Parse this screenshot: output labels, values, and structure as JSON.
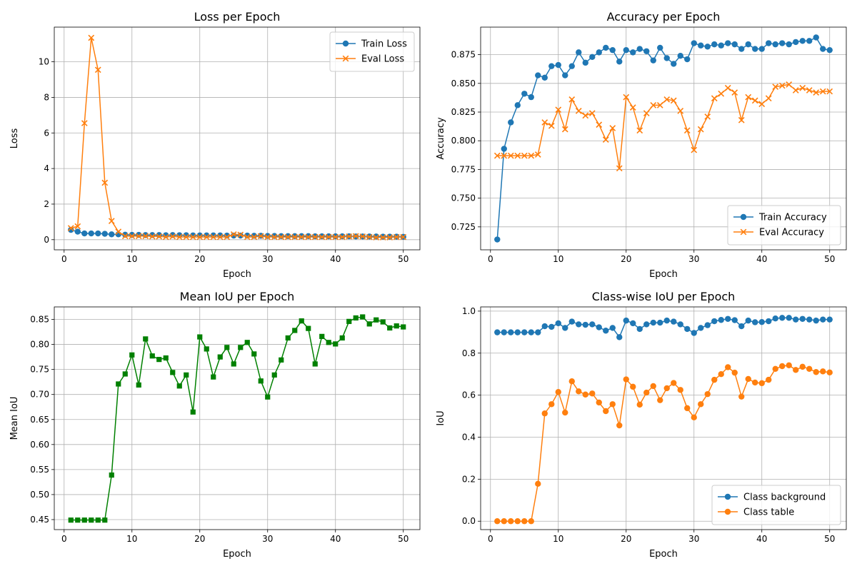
{
  "colors": {
    "tab_blue": "#1f77b4",
    "tab_orange": "#ff7f0e",
    "green": "#008000",
    "grid": "#b0b0b0"
  },
  "chart_data": [
    {
      "id": "loss",
      "type": "line",
      "title": "Loss per Epoch",
      "xlabel": "Epoch",
      "ylabel": "Loss",
      "xlim": [
        -1.45,
        52.45
      ],
      "ylim": [
        -0.57,
        11.95
      ],
      "xticks": [
        0,
        10,
        20,
        30,
        40,
        50
      ],
      "yticks": [
        0,
        2,
        4,
        6,
        8,
        10
      ],
      "tick_decimals": 0,
      "grid": true,
      "legend": "top-right",
      "x": [
        1,
        2,
        3,
        4,
        5,
        6,
        7,
        8,
        9,
        10,
        11,
        12,
        13,
        14,
        15,
        16,
        17,
        18,
        19,
        20,
        21,
        22,
        23,
        24,
        25,
        26,
        27,
        28,
        29,
        30,
        31,
        32,
        33,
        34,
        35,
        36,
        37,
        38,
        39,
        40,
        41,
        42,
        43,
        44,
        45,
        46,
        47,
        48,
        49,
        50
      ],
      "series": [
        {
          "name": "Train Loss",
          "color": "#1f77b4",
          "marker": "circle",
          "values": [
            0.55,
            0.45,
            0.35,
            0.35,
            0.35,
            0.33,
            0.3,
            0.3,
            0.28,
            0.27,
            0.27,
            0.26,
            0.26,
            0.26,
            0.25,
            0.26,
            0.25,
            0.25,
            0.24,
            0.24,
            0.24,
            0.24,
            0.24,
            0.23,
            0.23,
            0.23,
            0.23,
            0.22,
            0.22,
            0.21,
            0.21,
            0.2,
            0.2,
            0.2,
            0.2,
            0.2,
            0.19,
            0.19,
            0.19,
            0.19,
            0.19,
            0.19,
            0.18,
            0.18,
            0.18,
            0.18,
            0.17,
            0.17,
            0.17,
            0.16
          ]
        },
        {
          "name": "Eval Loss",
          "color": "#ff7f0e",
          "marker": "x",
          "values": [
            0.65,
            0.75,
            6.55,
            11.35,
            9.55,
            3.2,
            1.05,
            0.45,
            0.2,
            0.2,
            0.2,
            0.2,
            0.18,
            0.18,
            0.15,
            0.18,
            0.15,
            0.15,
            0.15,
            0.15,
            0.15,
            0.15,
            0.15,
            0.15,
            0.3,
            0.28,
            0.15,
            0.15,
            0.2,
            0.15,
            0.15,
            0.15,
            0.15,
            0.15,
            0.15,
            0.15,
            0.15,
            0.15,
            0.15,
            0.15,
            0.15,
            0.18,
            0.2,
            0.18,
            0.15,
            0.13,
            0.13,
            0.13,
            0.15,
            0.15
          ]
        }
      ]
    },
    {
      "id": "accuracy",
      "type": "line",
      "title": "Accuracy per Epoch",
      "xlabel": "Epoch",
      "ylabel": "Accuracy",
      "xlim": [
        -1.45,
        52.45
      ],
      "ylim": [
        0.705,
        0.899
      ],
      "xticks": [
        0,
        10,
        20,
        30,
        40,
        50
      ],
      "yticks": [
        0.725,
        0.75,
        0.775,
        0.8,
        0.825,
        0.85,
        0.875
      ],
      "tick_decimals": 3,
      "grid": true,
      "legend": "bottom-right",
      "x": [
        1,
        2,
        3,
        4,
        5,
        6,
        7,
        8,
        9,
        10,
        11,
        12,
        13,
        14,
        15,
        16,
        17,
        18,
        19,
        20,
        21,
        22,
        23,
        24,
        25,
        26,
        27,
        28,
        29,
        30,
        31,
        32,
        33,
        34,
        35,
        36,
        37,
        38,
        39,
        40,
        41,
        42,
        43,
        44,
        45,
        46,
        47,
        48,
        49,
        50
      ],
      "series": [
        {
          "name": "Train Accuracy",
          "color": "#1f77b4",
          "marker": "circle",
          "values": [
            0.714,
            0.793,
            0.816,
            0.831,
            0.841,
            0.838,
            0.857,
            0.855,
            0.865,
            0.866,
            0.857,
            0.865,
            0.877,
            0.868,
            0.873,
            0.877,
            0.881,
            0.879,
            0.869,
            0.879,
            0.877,
            0.88,
            0.878,
            0.87,
            0.881,
            0.872,
            0.867,
            0.874,
            0.871,
            0.885,
            0.883,
            0.882,
            0.884,
            0.883,
            0.885,
            0.884,
            0.88,
            0.884,
            0.88,
            0.88,
            0.885,
            0.884,
            0.885,
            0.884,
            0.886,
            0.887,
            0.887,
            0.89,
            0.88,
            0.879
          ]
        },
        {
          "name": "Eval Accuracy",
          "color": "#ff7f0e",
          "marker": "x",
          "values": [
            0.787,
            0.787,
            0.787,
            0.787,
            0.787,
            0.787,
            0.788,
            0.816,
            0.813,
            0.827,
            0.81,
            0.836,
            0.826,
            0.822,
            0.824,
            0.814,
            0.801,
            0.811,
            0.776,
            0.838,
            0.829,
            0.809,
            0.824,
            0.831,
            0.831,
            0.836,
            0.835,
            0.826,
            0.809,
            0.792,
            0.81,
            0.821,
            0.837,
            0.841,
            0.846,
            0.842,
            0.818,
            0.838,
            0.835,
            0.832,
            0.837,
            0.847,
            0.848,
            0.849,
            0.844,
            0.846,
            0.844,
            0.842,
            0.843,
            0.843
          ]
        }
      ]
    },
    {
      "id": "miou",
      "type": "line",
      "title": "Mean IoU per Epoch",
      "xlabel": "Epoch",
      "ylabel": "Mean IoU",
      "xlim": [
        -1.45,
        52.45
      ],
      "ylim": [
        0.43,
        0.875
      ],
      "xticks": [
        0,
        10,
        20,
        30,
        40,
        50
      ],
      "yticks": [
        0.45,
        0.5,
        0.55,
        0.6,
        0.65,
        0.7,
        0.75,
        0.8,
        0.85
      ],
      "tick_decimals": 2,
      "grid": true,
      "legend": "none",
      "x": [
        1,
        2,
        3,
        4,
        5,
        6,
        7,
        8,
        9,
        10,
        11,
        12,
        13,
        14,
        15,
        16,
        17,
        18,
        19,
        20,
        21,
        22,
        23,
        24,
        25,
        26,
        27,
        28,
        29,
        30,
        31,
        32,
        33,
        34,
        35,
        36,
        37,
        38,
        39,
        40,
        41,
        42,
        43,
        44,
        45,
        46,
        47,
        48,
        49,
        50
      ],
      "series": [
        {
          "color": "#008000",
          "marker": "square",
          "values": [
            0.449,
            0.449,
            0.449,
            0.449,
            0.449,
            0.449,
            0.539,
            0.721,
            0.741,
            0.779,
            0.719,
            0.811,
            0.777,
            0.77,
            0.773,
            0.744,
            0.717,
            0.739,
            0.665,
            0.815,
            0.791,
            0.735,
            0.775,
            0.794,
            0.761,
            0.794,
            0.804,
            0.781,
            0.727,
            0.695,
            0.739,
            0.769,
            0.813,
            0.828,
            0.847,
            0.832,
            0.761,
            0.816,
            0.804,
            0.801,
            0.813,
            0.846,
            0.853,
            0.855,
            0.841,
            0.849,
            0.845,
            0.833,
            0.837,
            0.835
          ]
        }
      ]
    },
    {
      "id": "classiou",
      "type": "line",
      "title": "Class-wise IoU per Epoch",
      "xlabel": "Epoch",
      "ylabel": "IoU",
      "xlim": [
        -1.45,
        52.45
      ],
      "ylim": [
        -0.04,
        1.02
      ],
      "xticks": [
        0,
        10,
        20,
        30,
        40,
        50
      ],
      "yticks": [
        0,
        0.2,
        0.4,
        0.6,
        0.8,
        1
      ],
      "tick_decimals": 1,
      "grid": true,
      "legend": "bottom-right",
      "x": [
        1,
        2,
        3,
        4,
        5,
        6,
        7,
        8,
        9,
        10,
        11,
        12,
        13,
        14,
        15,
        16,
        17,
        18,
        19,
        20,
        21,
        22,
        23,
        24,
        25,
        26,
        27,
        28,
        29,
        30,
        31,
        32,
        33,
        34,
        35,
        36,
        37,
        38,
        39,
        40,
        41,
        42,
        43,
        44,
        45,
        46,
        47,
        48,
        49,
        50
      ],
      "series": [
        {
          "name": "Class background",
          "color": "#1f77b4",
          "marker": "circle",
          "values": [
            0.899,
            0.899,
            0.899,
            0.899,
            0.899,
            0.899,
            0.899,
            0.928,
            0.925,
            0.942,
            0.92,
            0.95,
            0.937,
            0.935,
            0.937,
            0.923,
            0.907,
            0.92,
            0.876,
            0.955,
            0.942,
            0.915,
            0.937,
            0.945,
            0.945,
            0.955,
            0.95,
            0.937,
            0.915,
            0.896,
            0.92,
            0.933,
            0.952,
            0.958,
            0.963,
            0.957,
            0.928,
            0.955,
            0.947,
            0.948,
            0.952,
            0.965,
            0.968,
            0.968,
            0.96,
            0.963,
            0.96,
            0.955,
            0.96,
            0.96
          ]
        },
        {
          "name": "Class table",
          "color": "#ff7f0e",
          "marker": "circle",
          "values": [
            0,
            0,
            0,
            0,
            0,
            0,
            0.178,
            0.513,
            0.557,
            0.615,
            0.517,
            0.666,
            0.618,
            0.603,
            0.608,
            0.565,
            0.524,
            0.557,
            0.456,
            0.675,
            0.64,
            0.555,
            0.612,
            0.643,
            0.576,
            0.633,
            0.658,
            0.625,
            0.538,
            0.494,
            0.557,
            0.605,
            0.673,
            0.7,
            0.733,
            0.707,
            0.593,
            0.677,
            0.66,
            0.657,
            0.673,
            0.725,
            0.738,
            0.742,
            0.72,
            0.735,
            0.725,
            0.71,
            0.713,
            0.708
          ]
        }
      ]
    }
  ]
}
